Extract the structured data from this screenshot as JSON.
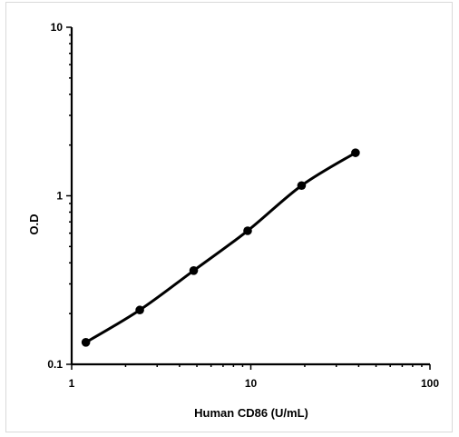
{
  "chart_data": {
    "type": "line",
    "title": "",
    "xlabel": "Human CD86 (U/mL)",
    "ylabel": "O.D",
    "xscale": "log",
    "yscale": "log",
    "xlim": [
      1,
      100
    ],
    "ylim": [
      0.1,
      10
    ],
    "grid": false,
    "legend": "none",
    "x_ticks": [
      "1",
      "10",
      "100"
    ],
    "y_ticks": [
      "0.1",
      "1",
      "10"
    ],
    "series": [
      {
        "x": [
          1.2,
          2.4,
          4.8,
          9.6,
          19.2,
          38.4
        ],
        "y": [
          0.135,
          0.21,
          0.36,
          0.62,
          1.15,
          1.8
        ]
      }
    ],
    "colors": {
      "line": "#000000",
      "marker": "#000000",
      "axis": "#000000"
    }
  }
}
